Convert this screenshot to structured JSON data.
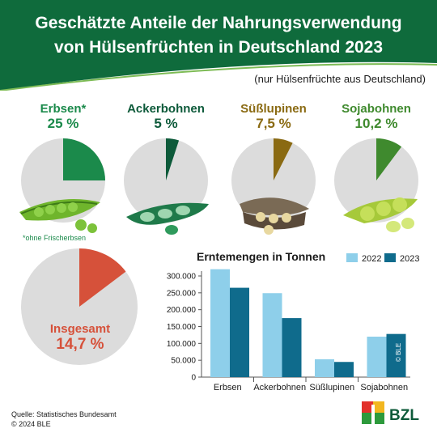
{
  "title_line1": "Geschätzte Anteile der Nahrungsverwendung",
  "title_line2": "von Hülsenfrüchten in Deutschland 2023",
  "subtitle": "(nur Hülsenfrüchte aus Deutschland)",
  "pies": [
    {
      "name": "Erbsen*",
      "value_label": "25 %",
      "share": 0.25,
      "color": "#1b8a4b",
      "name_color": "#1b8a4b"
    },
    {
      "name": "Ackerbohnen",
      "value_label": "5 %",
      "share": 0.05,
      "color": "#0d5a3a",
      "name_color": "#0d5a3a"
    },
    {
      "name": "Süßlupinen",
      "value_label": "7,5 %",
      "share": 0.075,
      "color": "#8a6a12",
      "name_color": "#8a6a12"
    },
    {
      "name": "Sojabohnen",
      "value_label": "10,2 %",
      "share": 0.102,
      "color": "#3f8a2e",
      "name_color": "#3f8a2e"
    }
  ],
  "total_pie": {
    "name": "Insgesamt",
    "value_label": "14,7 %",
    "share": 0.147,
    "color": "#d6513a"
  },
  "footnote": "*ohne Frischerbsen",
  "chart_data": {
    "type": "bar",
    "title": "Erntemengen in Tonnen",
    "categories": [
      "Erbsen",
      "Ackerbohnen",
      "Süßlupinen",
      "Sojabohnen"
    ],
    "series": [
      {
        "name": "2022",
        "color": "#8ecfea",
        "values": [
          320000,
          249000,
          53000,
          120000
        ]
      },
      {
        "name": "2023",
        "color": "#0f6b8c",
        "values": [
          265000,
          175000,
          45000,
          128000
        ]
      }
    ],
    "ylim": [
      0,
      300000
    ],
    "yticks": [
      0,
      50000,
      100000,
      150000,
      200000,
      250000,
      300000
    ],
    "ytick_labels": [
      "0",
      "50.000",
      "100.000",
      "150.000",
      "200.000",
      "250.000",
      "300.000"
    ],
    "legend_position": "top-right"
  },
  "watermark": "© BLE",
  "source_line1": "Quelle: Statistisches Bundesamt",
  "source_line2": "© 2024 BLE",
  "logo_text": "BZL",
  "colors": {
    "header_green": "#0f6b3c",
    "pie_gray": "#dcdcdc"
  }
}
